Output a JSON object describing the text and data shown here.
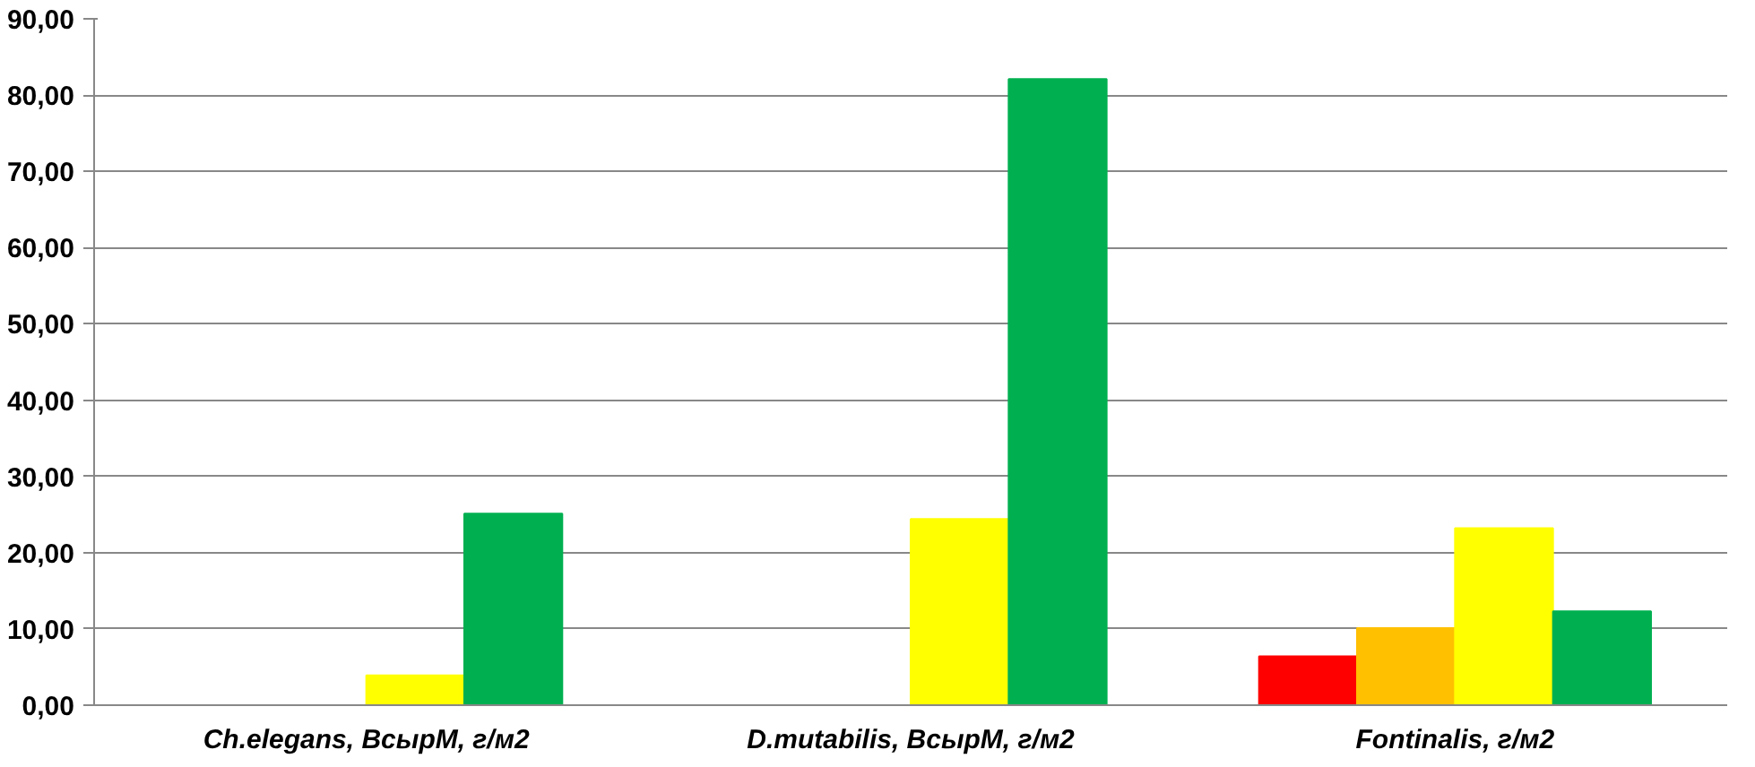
{
  "chart_data": {
    "type": "bar",
    "categories": [
      "Ch.elegans, ВсырМ, г/м2",
      "D.mutabilis, ВсырМ, г/м2",
      "Fontinalis, г/м2"
    ],
    "series": [
      {
        "color": "#ff0000",
        "values": [
          null,
          null,
          6.4
        ]
      },
      {
        "color": "#ffc000",
        "values": [
          null,
          null,
          10.1
        ]
      },
      {
        "color": "#ffff00",
        "values": [
          3.9,
          24.4,
          23.2
        ]
      },
      {
        "color": "#00b050",
        "values": [
          25.1,
          82.1,
          12.3
        ]
      }
    ],
    "ylim": [
      0,
      90
    ],
    "yticks": [
      {
        "value": 0,
        "label": "0,00"
      },
      {
        "value": 10,
        "label": "10,00"
      },
      {
        "value": 20,
        "label": "20,00"
      },
      {
        "value": 30,
        "label": "30,00"
      },
      {
        "value": 40,
        "label": "40,00"
      },
      {
        "value": 50,
        "label": "50,00"
      },
      {
        "value": 60,
        "label": "60,00"
      },
      {
        "value": 70,
        "label": "70,00"
      },
      {
        "value": 80,
        "label": "80,00"
      },
      {
        "value": 90,
        "label": "90,00"
      }
    ],
    "grid": "y"
  }
}
